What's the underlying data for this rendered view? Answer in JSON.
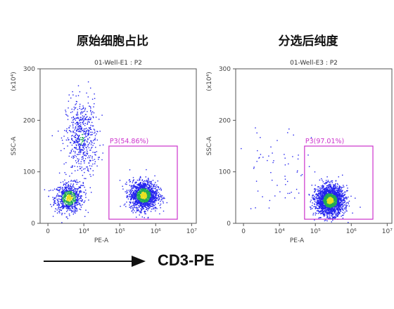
{
  "headings": [
    "原始细胞占比",
    "分选后纯度"
  ],
  "footer": {
    "label": "CD3-PE"
  },
  "colors": {
    "gate": "#cc33cc",
    "low_density": "#2222ee",
    "mid_density": "#22aa55",
    "high_density": "#e8e020"
  },
  "chart_data": [
    {
      "type": "scatter",
      "title": "01-Well-E1 : P2",
      "xlabel": "PE-A",
      "ylabel": "SSC-A",
      "y_multiplier": "(x10⁴)",
      "x_scale": "biexponential",
      "x_ticks": [
        "0",
        "10⁴",
        "10⁵",
        "10⁶",
        "10⁷"
      ],
      "y_ticks": [
        "0",
        "100",
        "200",
        "300"
      ],
      "ylim": [
        0,
        300
      ],
      "gate": {
        "name": "P3",
        "percent": "54.86%",
        "label": "P3(54.86%)",
        "x_range": [
          "5x10⁴",
          "4x10⁶"
        ],
        "y_range": [
          8,
          150
        ]
      },
      "populations": [
        {
          "x_center": "2x10²",
          "y_center": 50,
          "share": 0.28,
          "density": "high"
        },
        {
          "x_center": "5x10³",
          "y_center": 165,
          "share": 0.22,
          "density": "medium"
        },
        {
          "x_center": "4.5x10⁵",
          "y_center": 55,
          "share": 0.55,
          "density": "high"
        }
      ]
    },
    {
      "type": "scatter",
      "title": "01-Well-E3 : P2",
      "xlabel": "PE-A",
      "ylabel": "SSC-A",
      "y_multiplier": "(x10⁴)",
      "x_scale": "biexponential",
      "x_ticks": [
        "0",
        "10⁴",
        "10⁵",
        "10⁶",
        "10⁷"
      ],
      "y_ticks": [
        "0",
        "100",
        "200",
        "300"
      ],
      "ylim": [
        0,
        300
      ],
      "gate": {
        "name": "P3",
        "percent": "97.01%",
        "label": "P3(97.01%)",
        "x_range": [
          "5x10⁴",
          "4x10⁶"
        ],
        "y_range": [
          8,
          150
        ]
      },
      "populations": [
        {
          "x_center": "2.5x10⁵",
          "y_center": 45,
          "share": 0.97,
          "density": "high"
        },
        {
          "x_center": "3x10³",
          "y_center": 90,
          "share": 0.03,
          "density": "low"
        }
      ]
    }
  ]
}
